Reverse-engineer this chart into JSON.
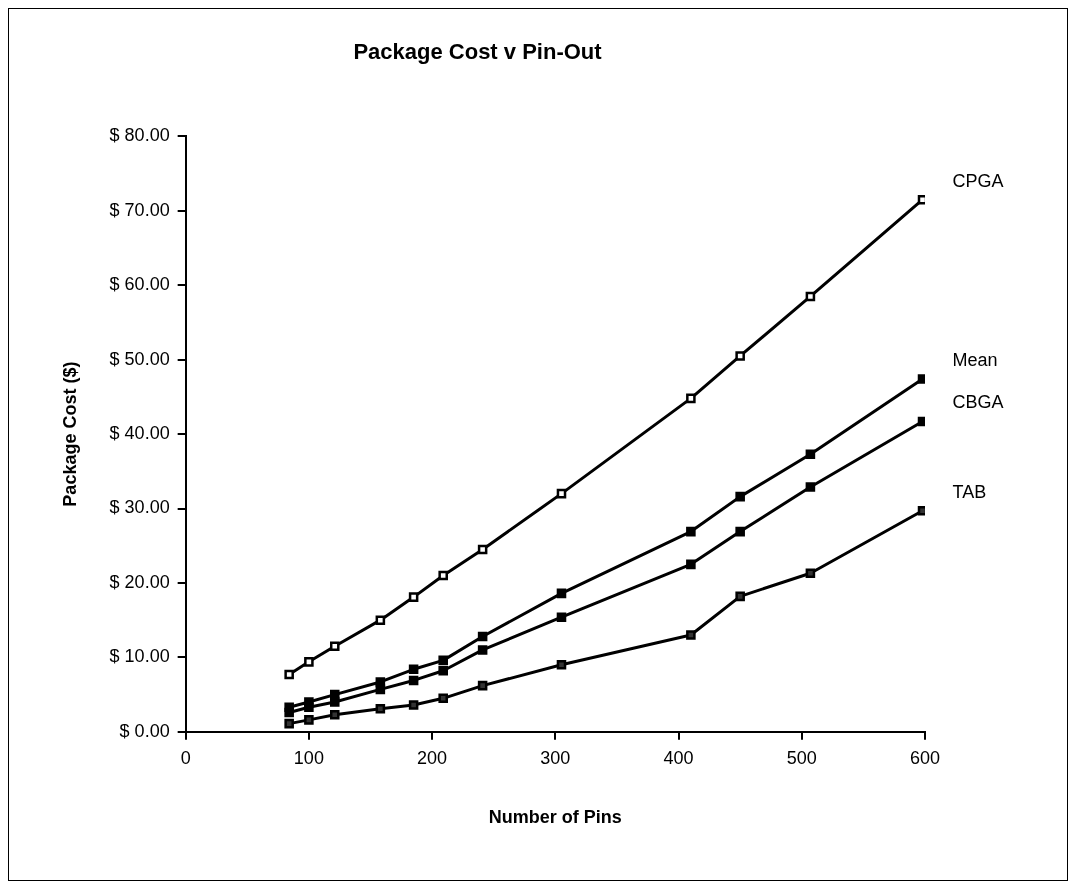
{
  "chart_data": {
    "type": "line",
    "title": "Package Cost v Pin-Out",
    "xlabel": "Number of Pins",
    "ylabel": "Package Cost ($)",
    "x": [
      84,
      100,
      121,
      158,
      185,
      209,
      241,
      305,
      410,
      450,
      507,
      598
    ],
    "series": [
      {
        "name": "CPGA",
        "color": "#000000",
        "values": [
          7.7,
          9.4,
          11.5,
          15.0,
          18.1,
          21.0,
          24.5,
          32.0,
          44.8,
          50.5,
          58.5,
          71.5
        ]
      },
      {
        "name": "Mean",
        "color": "#000000",
        "values": [
          3.3,
          4.0,
          5.0,
          6.7,
          8.4,
          9.6,
          12.8,
          18.6,
          26.9,
          31.6,
          37.3,
          47.4
        ]
      },
      {
        "name": "CBGA",
        "color": "#000000",
        "values": [
          2.6,
          3.3,
          4.0,
          5.7,
          6.9,
          8.2,
          11.0,
          15.4,
          22.5,
          26.9,
          32.9,
          41.7
        ]
      },
      {
        "name": "TAB",
        "color": "#000000",
        "values": [
          1.1,
          1.6,
          2.3,
          3.1,
          3.6,
          4.5,
          6.2,
          9.0,
          13.0,
          18.2,
          21.3,
          29.7
        ]
      }
    ],
    "xlim": [
      0,
      600
    ],
    "xticks": [
      0,
      100,
      200,
      300,
      400,
      500,
      600
    ],
    "ylim": [
      0,
      80
    ],
    "yticks": [
      {
        "value": 0,
        "label": "$ 0.00"
      },
      {
        "value": 10,
        "label": "$ 10.00"
      },
      {
        "value": 20,
        "label": "$ 20.00"
      },
      {
        "value": 30,
        "label": "$ 30.00"
      },
      {
        "value": 40,
        "label": "$ 40.00"
      },
      {
        "value": 50,
        "label": "$ 50.00"
      },
      {
        "value": 60,
        "label": "$ 60.00"
      },
      {
        "value": 70,
        "label": "$ 70.00"
      },
      {
        "value": 80,
        "label": "$ 80.00"
      }
    ],
    "grid": false,
    "legend": false,
    "marker": "square",
    "line_style": "solid"
  }
}
